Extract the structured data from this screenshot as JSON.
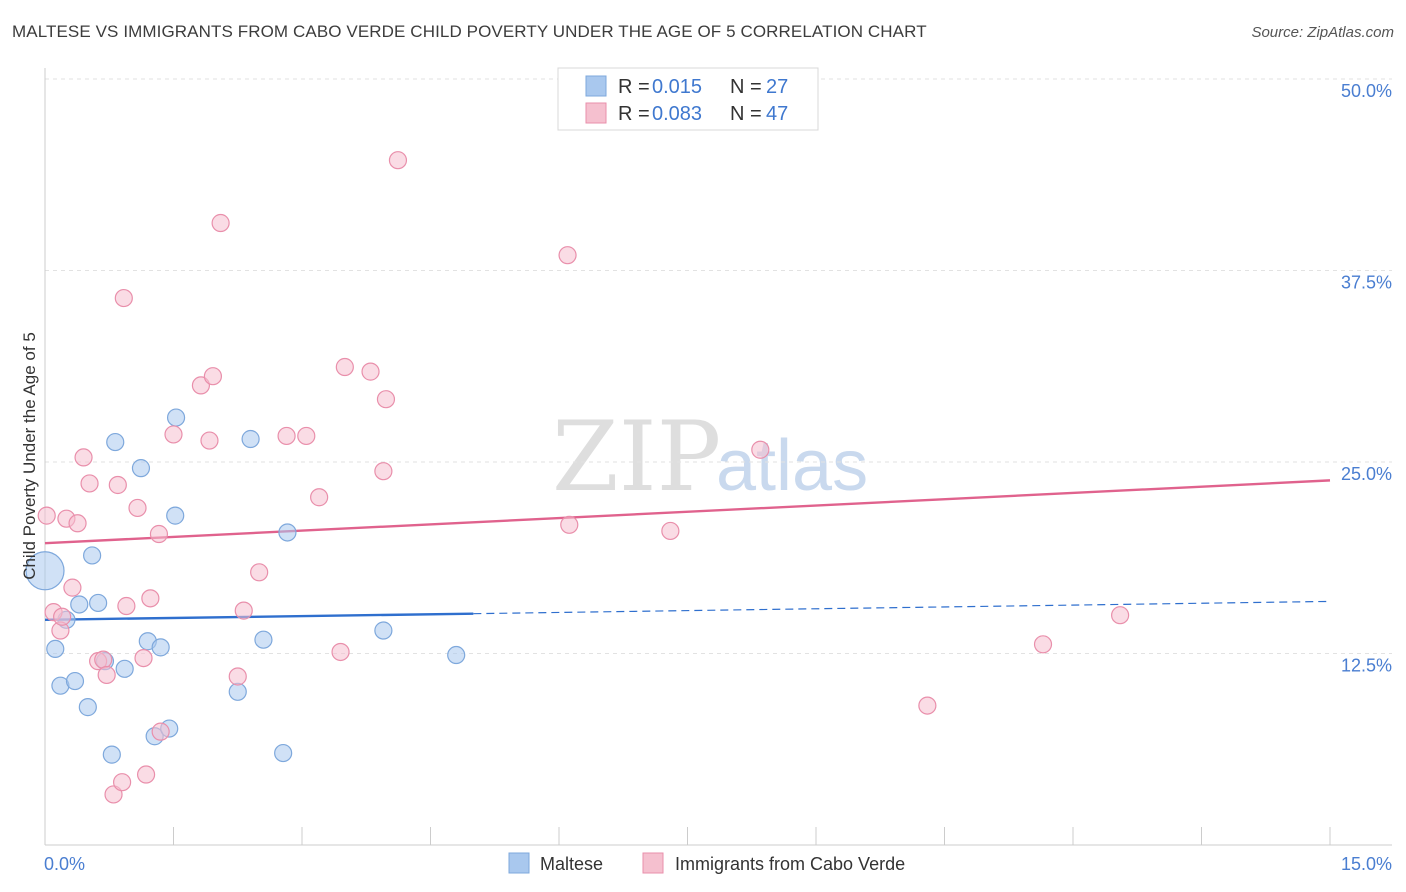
{
  "title": "MALTESE VS IMMIGRANTS FROM CABO VERDE CHILD POVERTY UNDER THE AGE OF 5 CORRELATION CHART",
  "source": "Source: ZipAtlas.com",
  "watermark": {
    "zip": "ZIP",
    "atlas": "atlas"
  },
  "legend_top": {
    "rows": [
      {
        "r_label": "R = ",
        "r_value": "0.015",
        "n_label": "N = ",
        "n_value": "27"
      },
      {
        "r_label": "R = ",
        "r_value": "0.083",
        "n_label": "N = ",
        "n_value": "47"
      }
    ]
  },
  "chart_data": {
    "type": "scatter",
    "title": "MALTESE VS IMMIGRANTS FROM CABO VERDE CHILD POVERTY UNDER THE AGE OF 5 CORRELATION CHART",
    "xlabel": "",
    "ylabel": "Child Poverty Under the Age of 5",
    "xlim": [
      0,
      15
    ],
    "ylim": [
      0,
      50
    ],
    "x_tick_labels": [
      "0.0%",
      "15.0%"
    ],
    "y_ticks": [
      12.5,
      25.0,
      37.5,
      50.0
    ],
    "y_tick_labels": [
      "12.5%",
      "25.0%",
      "37.5%",
      "50.0%"
    ],
    "grid": true,
    "legend_position": "bottom",
    "series": [
      {
        "name": "Maltese",
        "color": "#a9c8ee",
        "stroke": "#7ea8dc",
        "line_color": "#2f6fce",
        "R": 0.015,
        "N": 27,
        "trend": {
          "x0": 0,
          "y0": 14.7,
          "x1": 15,
          "y1": 15.9,
          "solid_until": 5.0
        },
        "points": [
          {
            "x": 0.0,
            "y": 17.9,
            "big": true
          },
          {
            "x": 0.12,
            "y": 12.8
          },
          {
            "x": 0.18,
            "y": 10.4
          },
          {
            "x": 0.25,
            "y": 14.7
          },
          {
            "x": 0.35,
            "y": 10.7
          },
          {
            "x": 0.4,
            "y": 15.7
          },
          {
            "x": 0.5,
            "y": 9.0
          },
          {
            "x": 0.55,
            "y": 18.9
          },
          {
            "x": 0.62,
            "y": 15.8
          },
          {
            "x": 0.7,
            "y": 12.0
          },
          {
            "x": 0.78,
            "y": 5.9
          },
          {
            "x": 0.82,
            "y": 26.3
          },
          {
            "x": 0.93,
            "y": 11.5
          },
          {
            "x": 1.12,
            "y": 24.6
          },
          {
            "x": 1.2,
            "y": 13.3
          },
          {
            "x": 1.28,
            "y": 7.1
          },
          {
            "x": 1.35,
            "y": 12.9
          },
          {
            "x": 1.45,
            "y": 7.6
          },
          {
            "x": 1.52,
            "y": 21.5
          },
          {
            "x": 1.53,
            "y": 27.9
          },
          {
            "x": 2.25,
            "y": 10.0
          },
          {
            "x": 2.4,
            "y": 26.5
          },
          {
            "x": 2.55,
            "y": 13.4
          },
          {
            "x": 2.78,
            "y": 6.0
          },
          {
            "x": 2.83,
            "y": 20.4
          },
          {
            "x": 3.95,
            "y": 14.0
          },
          {
            "x": 4.8,
            "y": 12.4
          }
        ]
      },
      {
        "name": "Immigrants from Cabo Verde",
        "color": "#f5c0cf",
        "stroke": "#e98fab",
        "line_color": "#e0628d",
        "R": 0.083,
        "N": 47,
        "trend": {
          "x0": 0,
          "y0": 19.7,
          "x1": 15,
          "y1": 23.8,
          "solid_until": 15
        },
        "points": [
          {
            "x": 0.02,
            "y": 21.5
          },
          {
            "x": 0.1,
            "y": 15.2
          },
          {
            "x": 0.18,
            "y": 14.0
          },
          {
            "x": 0.25,
            "y": 21.3
          },
          {
            "x": 0.32,
            "y": 16.8
          },
          {
            "x": 0.38,
            "y": 21.0
          },
          {
            "x": 0.45,
            "y": 25.3
          },
          {
            "x": 0.52,
            "y": 23.6
          },
          {
            "x": 0.62,
            "y": 12.0
          },
          {
            "x": 0.68,
            "y": 12.1
          },
          {
            "x": 0.72,
            "y": 11.1
          },
          {
            "x": 0.8,
            "y": 3.3
          },
          {
            "x": 0.85,
            "y": 23.5
          },
          {
            "x": 0.9,
            "y": 4.1
          },
          {
            "x": 0.92,
            "y": 35.7
          },
          {
            "x": 0.95,
            "y": 15.6
          },
          {
            "x": 1.08,
            "y": 22.0
          },
          {
            "x": 1.15,
            "y": 12.2
          },
          {
            "x": 1.18,
            "y": 4.6
          },
          {
            "x": 1.23,
            "y": 16.1
          },
          {
            "x": 1.33,
            "y": 20.3
          },
          {
            "x": 1.35,
            "y": 7.4
          },
          {
            "x": 1.5,
            "y": 26.8
          },
          {
            "x": 1.82,
            "y": 30.0
          },
          {
            "x": 1.92,
            "y": 26.4
          },
          {
            "x": 1.96,
            "y": 30.6
          },
          {
            "x": 2.05,
            "y": 40.6
          },
          {
            "x": 2.25,
            "y": 11.0
          },
          {
            "x": 2.32,
            "y": 15.3
          },
          {
            "x": 2.5,
            "y": 17.8
          },
          {
            "x": 2.82,
            "y": 26.7
          },
          {
            "x": 3.05,
            "y": 26.7
          },
          {
            "x": 3.2,
            "y": 22.7
          },
          {
            "x": 3.45,
            "y": 12.6
          },
          {
            "x": 3.5,
            "y": 31.2
          },
          {
            "x": 3.8,
            "y": 30.9
          },
          {
            "x": 3.95,
            "y": 24.4
          },
          {
            "x": 3.98,
            "y": 29.1
          },
          {
            "x": 4.12,
            "y": 44.7
          },
          {
            "x": 6.1,
            "y": 38.5
          },
          {
            "x": 6.12,
            "y": 20.9
          },
          {
            "x": 7.3,
            "y": 20.5
          },
          {
            "x": 8.35,
            "y": 25.8
          },
          {
            "x": 10.3,
            "y": 9.1
          },
          {
            "x": 11.65,
            "y": 13.1
          },
          {
            "x": 12.55,
            "y": 15.0
          },
          {
            "x": 0.2,
            "y": 14.9
          }
        ]
      }
    ]
  }
}
